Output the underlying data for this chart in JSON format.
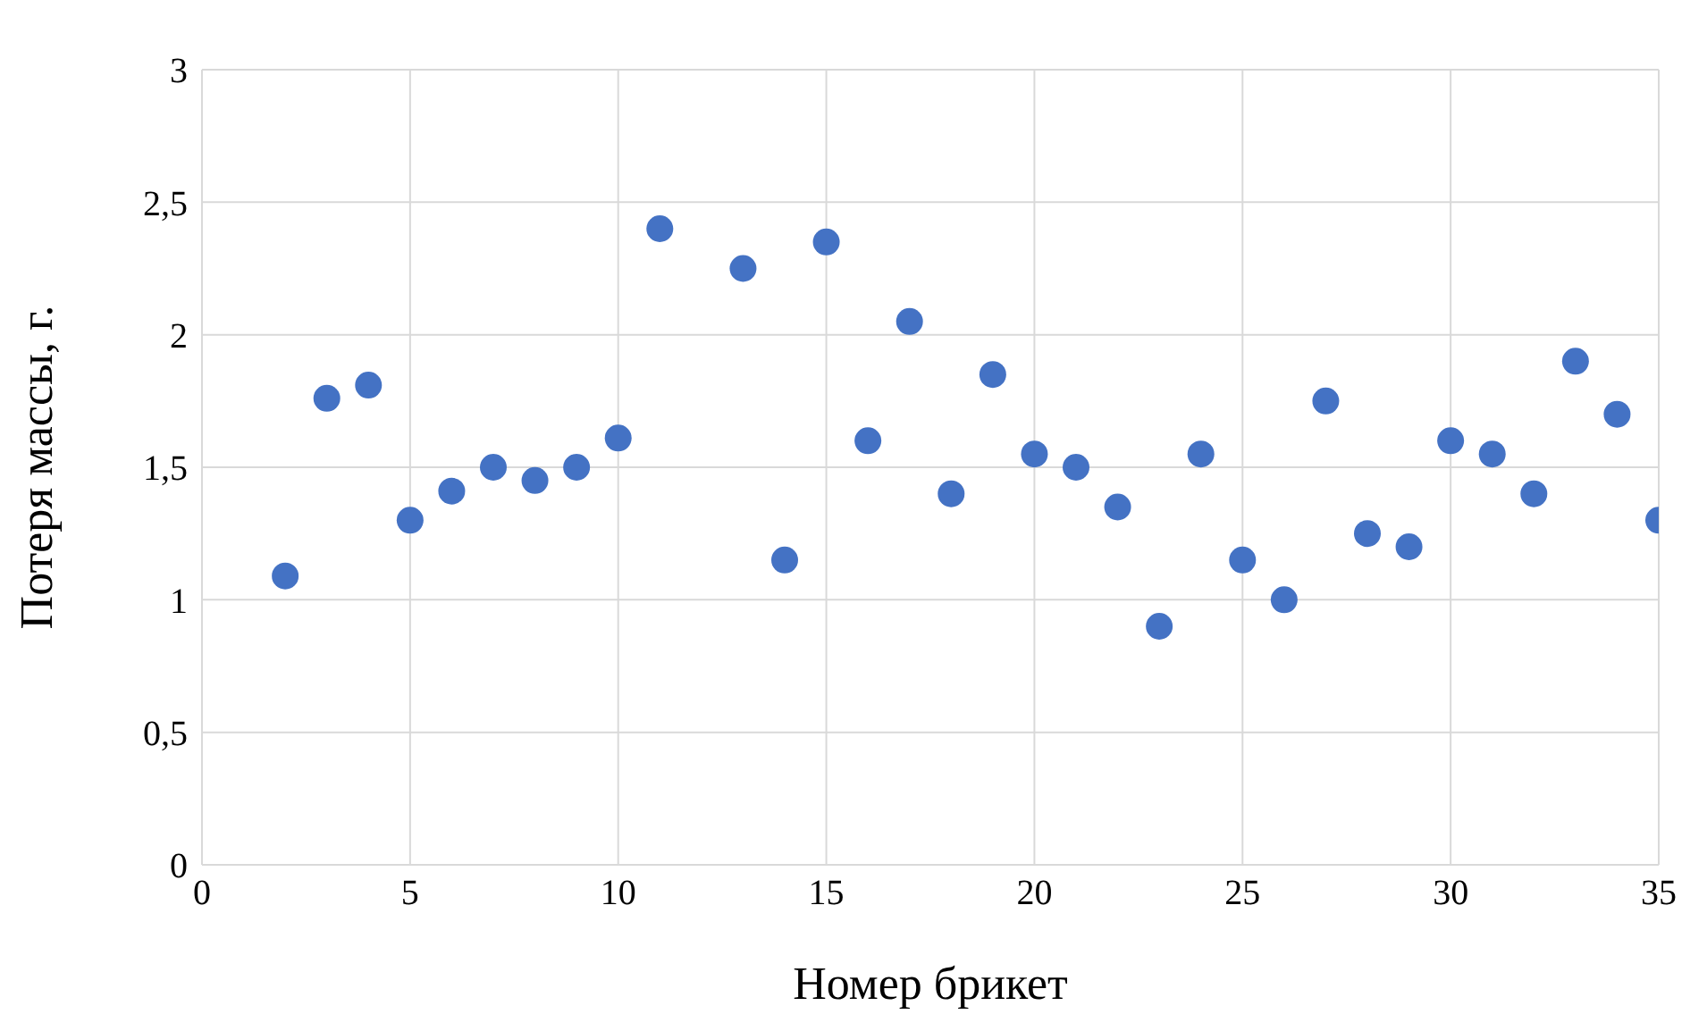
{
  "chart_data": {
    "type": "scatter",
    "xlabel": "Номер брикет",
    "ylabel": "Потеря массы, г.",
    "x": [
      2,
      3,
      4,
      5,
      6,
      7,
      8,
      9,
      10,
      11,
      13,
      14,
      15,
      16,
      17,
      18,
      19,
      20,
      21,
      22,
      23,
      24,
      25,
      26,
      27,
      28,
      29,
      30,
      31,
      32,
      33,
      34,
      35
    ],
    "series": [
      {
        "color": "#4472c4",
        "values": [
          1.09,
          1.76,
          1.81,
          1.3,
          1.41,
          1.5,
          1.45,
          1.5,
          1.61,
          2.4,
          2.25,
          1.15,
          2.35,
          1.6,
          2.05,
          1.4,
          1.85,
          1.55,
          1.5,
          1.35,
          0.9,
          1.55,
          1.15,
          1.0,
          1.75,
          1.25,
          1.2,
          1.6,
          1.55,
          1.4,
          1.9,
          1.7,
          1.3
        ]
      }
    ],
    "xlim": [
      0,
      35
    ],
    "xticks": [
      0,
      5,
      10,
      15,
      20,
      25,
      30,
      35
    ],
    "ylim": [
      0,
      3
    ],
    "yticks": [
      0,
      {
        "value": 0.5,
        "label": "0,5"
      },
      1,
      {
        "value": 1.5,
        "label": "1,5"
      },
      2,
      {
        "value": 2.5,
        "label": "2,5"
      },
      3
    ],
    "grid": true,
    "marker": "circle"
  }
}
